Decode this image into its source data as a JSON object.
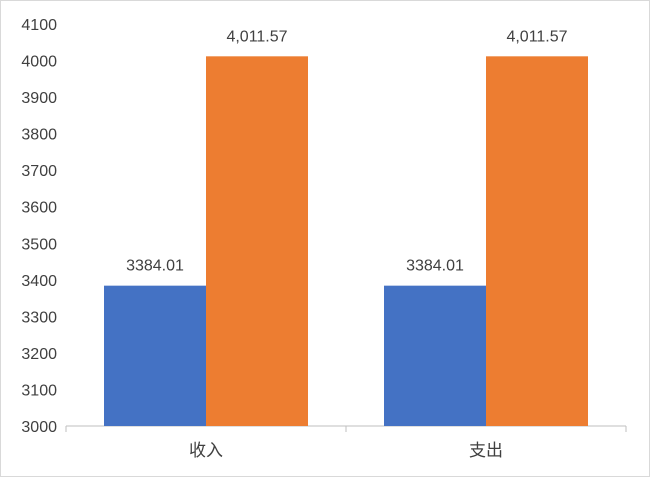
{
  "chart_data": {
    "type": "bar",
    "title": "",
    "xlabel": "",
    "ylabel": "",
    "categories": [
      "收入",
      "支出"
    ],
    "series": [
      {
        "color": "#4472C4",
        "values": [
          3384.01,
          3384.01
        ],
        "labels": [
          "3384.01",
          "3384.01"
        ]
      },
      {
        "color": "#ED7D31",
        "values": [
          4011.57,
          4011.57
        ],
        "labels": [
          "4,011.57",
          "4,011.57"
        ]
      }
    ],
    "ylim": [
      3000,
      4100
    ],
    "yticks": [
      3000,
      3100,
      3200,
      3300,
      3400,
      3500,
      3600,
      3700,
      3800,
      3900,
      4000,
      4100
    ],
    "ytick_labels": [
      "3000",
      "3100",
      "3200",
      "3300",
      "3400",
      "3500",
      "3600",
      "3700",
      "3800",
      "3900",
      "4000",
      "4100"
    ],
    "grid": false,
    "legend": "none"
  }
}
